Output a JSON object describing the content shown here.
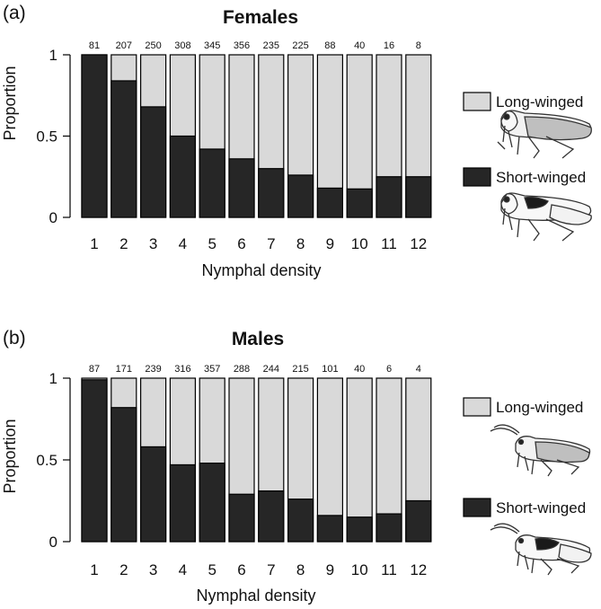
{
  "figure": {
    "xlabel": "Nymphal density",
    "ylabel": "Proportion",
    "legend": {
      "long": "Long-winged",
      "short": "Short-winged"
    },
    "colors": {
      "short": "#262626",
      "long": "#d9d9d9",
      "stroke": "#000000"
    }
  },
  "chart_data": [
    {
      "type": "bar",
      "stacked": true,
      "panel_label": "(a)",
      "title": "Females",
      "categories": [
        "1",
        "2",
        "3",
        "4",
        "5",
        "6",
        "7",
        "8",
        "9",
        "10",
        "11",
        "12"
      ],
      "counts": [
        "81",
        "207",
        "250",
        "308",
        "345",
        "356",
        "235",
        "225",
        "88",
        "40",
        "16",
        "8"
      ],
      "series": [
        {
          "name": "Short-winged",
          "values": [
            1.0,
            0.84,
            0.68,
            0.5,
            0.42,
            0.36,
            0.3,
            0.26,
            0.18,
            0.175,
            0.25,
            0.25
          ]
        },
        {
          "name": "Long-winged",
          "values": [
            0.0,
            0.16,
            0.32,
            0.5,
            0.58,
            0.64,
            0.7,
            0.74,
            0.82,
            0.825,
            0.75,
            0.75
          ]
        }
      ],
      "yticks": [
        "0",
        "0.5",
        "1"
      ],
      "ylim": [
        0,
        1
      ],
      "xlabel": "Nymphal density",
      "ylabel": "Proportion",
      "legend_position": "right"
    },
    {
      "type": "bar",
      "stacked": true,
      "panel_label": "(b)",
      "title": "Males",
      "categories": [
        "1",
        "2",
        "3",
        "4",
        "5",
        "6",
        "7",
        "8",
        "9",
        "10",
        "11",
        "12"
      ],
      "counts": [
        "87",
        "171",
        "239",
        "316",
        "357",
        "288",
        "244",
        "215",
        "101",
        "40",
        "6",
        "4"
      ],
      "series": [
        {
          "name": "Short-winged",
          "values": [
            0.99,
            0.82,
            0.58,
            0.47,
            0.48,
            0.29,
            0.31,
            0.26,
            0.16,
            0.15,
            0.17,
            0.25
          ]
        },
        {
          "name": "Long-winged",
          "values": [
            0.01,
            0.18,
            0.42,
            0.53,
            0.52,
            0.71,
            0.69,
            0.74,
            0.84,
            0.85,
            0.83,
            0.75
          ]
        }
      ],
      "yticks": [
        "0",
        "0.5",
        "1"
      ],
      "ylim": [
        0,
        1
      ],
      "xlabel": "Nymphal density",
      "ylabel": "Proportion",
      "legend_position": "right"
    }
  ]
}
